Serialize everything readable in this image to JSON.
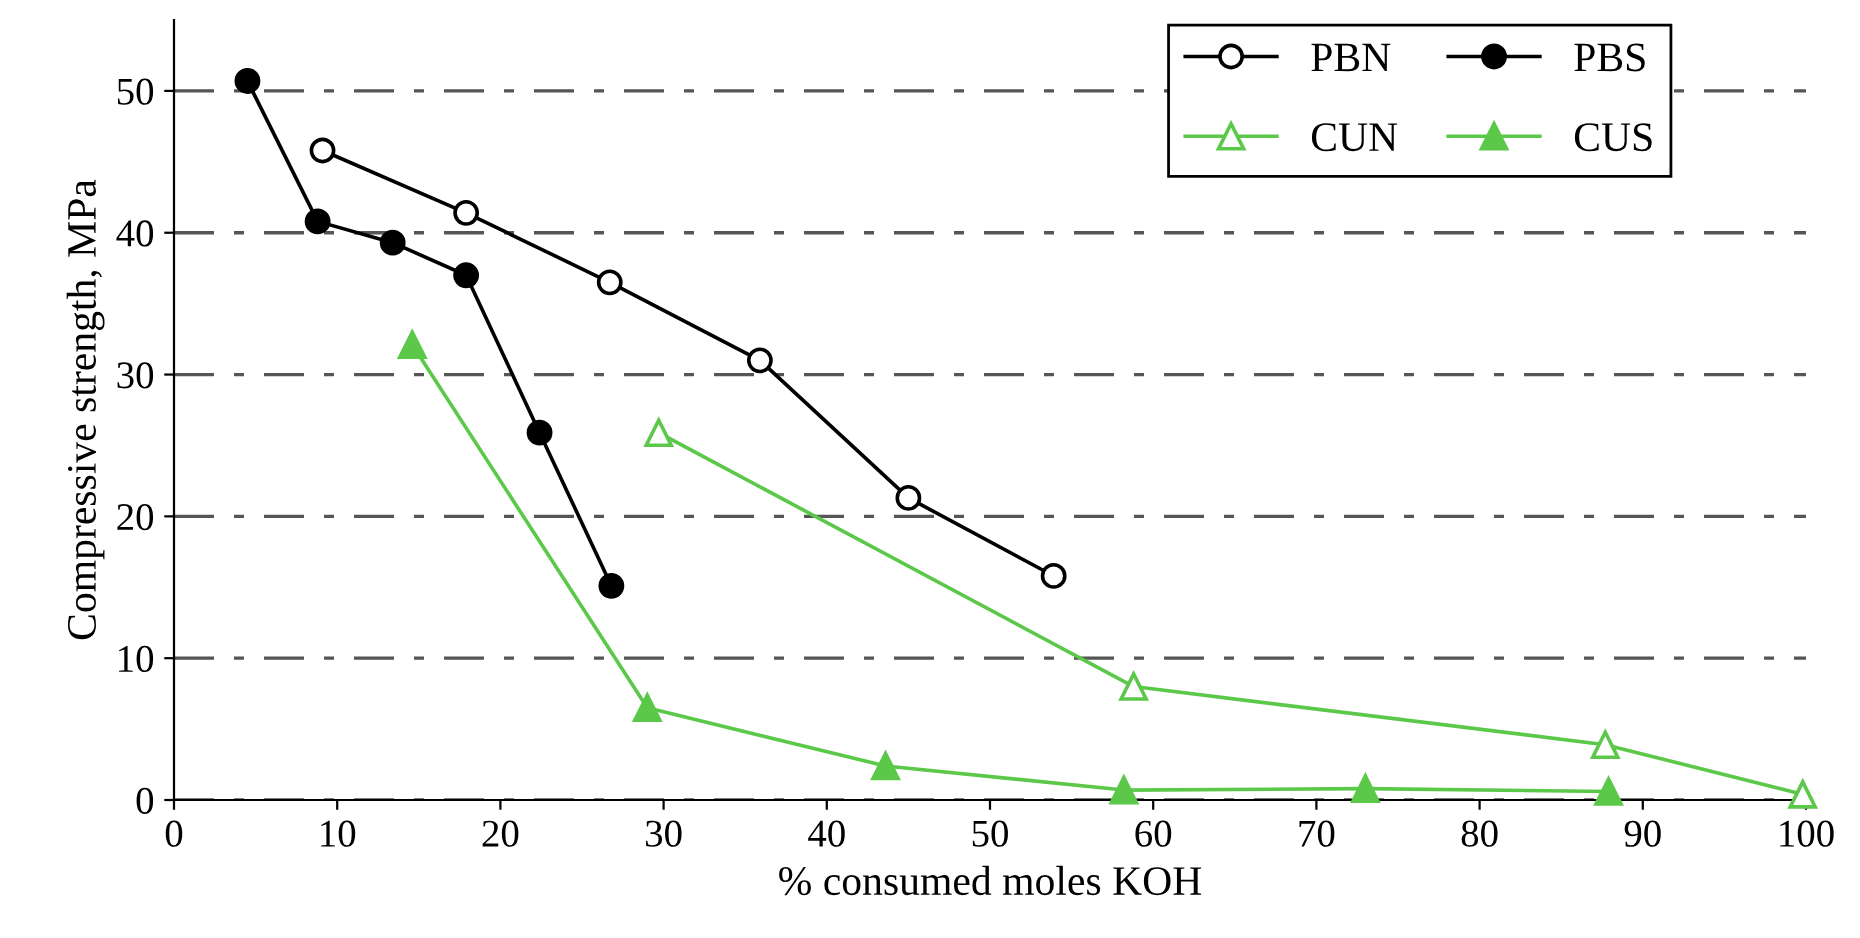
{
  "chart_data": {
    "type": "line",
    "xlabel": "% consumed moles KOH",
    "ylabel": "Compressive strength, MPa",
    "xlim": [
      0,
      100
    ],
    "xticks": [
      0,
      10,
      20,
      30,
      40,
      50,
      60,
      70,
      80,
      90,
      100
    ],
    "ylim": [
      0,
      55
    ],
    "yticks": [
      0,
      10,
      20,
      30,
      40,
      50
    ],
    "grid": "y",
    "legend": "top right",
    "line_style": "solid",
    "series": [
      {
        "name": "PBN",
        "color": "#000000",
        "marker": "circle",
        "x": [
          9.1,
          17.9,
          26.7,
          35.9,
          45.0,
          53.9
        ],
        "values": [
          45.8,
          41.4,
          36.5,
          31.0,
          21.3,
          15.8
        ]
      },
      {
        "name": "PBS",
        "color": "#000000",
        "marker": "circle",
        "x": [
          4.5,
          8.8,
          13.4,
          17.9,
          22.4,
          26.8
        ],
        "values": [
          50.7,
          40.8,
          39.3,
          37.0,
          25.9,
          15.1
        ]
      },
      {
        "name": "CUN",
        "color": "#5cc84a",
        "marker": "triangle",
        "x": [
          29.7,
          58.8,
          87.7,
          99.8
        ],
        "values": [
          25.9,
          8.0,
          3.9,
          0.4
        ]
      },
      {
        "name": "CUS",
        "color": "#5cc84a",
        "marker": "triangle",
        "x": [
          14.6,
          29.0,
          43.6,
          58.2,
          73.0,
          87.9
        ],
        "values": [
          32.1,
          6.5,
          2.4,
          0.7,
          0.8,
          0.6
        ]
      }
    ]
  }
}
